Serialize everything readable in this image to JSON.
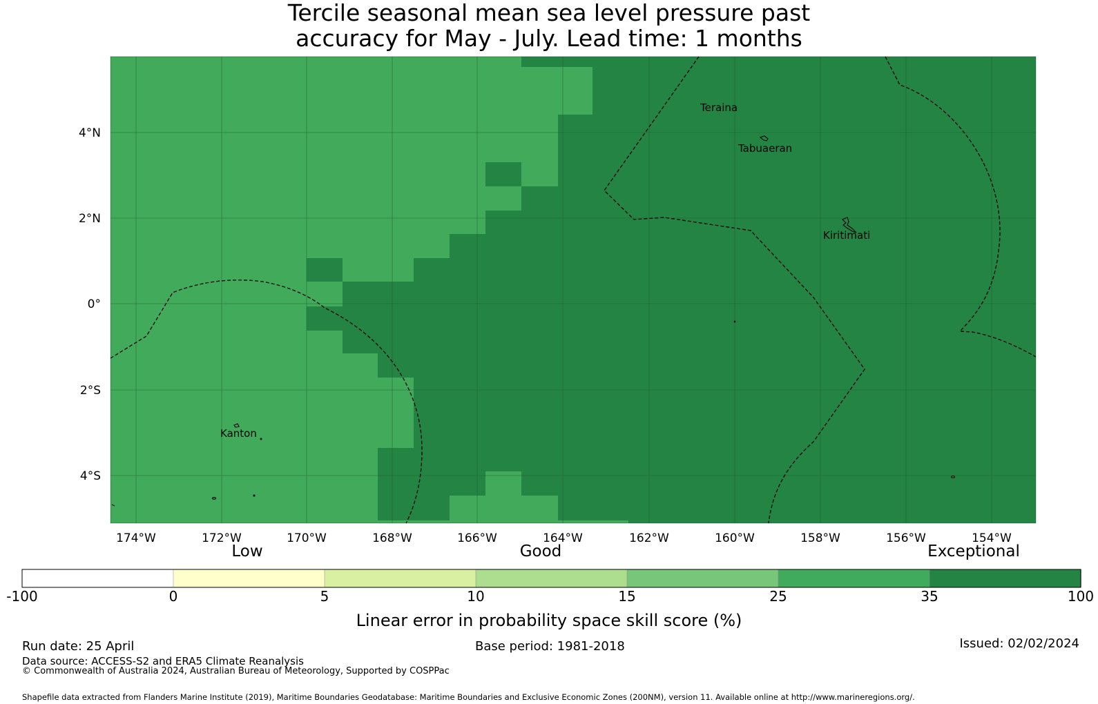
{
  "title": {
    "line1": "Tercile seasonal mean sea level pressure past",
    "line2": "accuracy for May - July. Lead time: 1 months"
  },
  "map": {
    "lon_labels": [
      "174°W",
      "172°W",
      "170°W",
      "168°W",
      "166°W",
      "164°W",
      "162°W",
      "160°W",
      "158°W",
      "156°W",
      "154°W"
    ],
    "lat_labels": [
      "4°N",
      "2°N",
      "0°",
      "2°S",
      "4°S"
    ],
    "places": [
      {
        "name": "Teraina"
      },
      {
        "name": "Tabuaeran"
      },
      {
        "name": "Kiritimati"
      },
      {
        "name": "Kanton"
      }
    ],
    "colors": {
      "good_25_35": "#41aa5b",
      "exceptional_35_100": "#238443",
      "grid": "#1f5f30",
      "boundary": "#000000"
    }
  },
  "colorbar": {
    "categories": [
      "Low",
      "Good",
      "Exceptional"
    ],
    "ticks": [
      "-100",
      "0",
      "5",
      "10",
      "15",
      "25",
      "35",
      "100"
    ],
    "colors": [
      "#ffffff",
      "#ffffcc",
      "#d9f0a3",
      "#addd8e",
      "#78c679",
      "#41ab5d",
      "#238443"
    ],
    "label": "Linear error in probability space skill score (%)"
  },
  "footer": {
    "run_date": "Run date: 25 April",
    "base_period": "Base period: 1981-2018",
    "issued": "Issued: 02/02/2024",
    "data_source": "Data source: ACCESS-S2 and ERA5 Climate Reanalysis",
    "copyright": "© Commonwealth of Australia 2024, Australian Bureau of Meteorology, Supported by COSPPac",
    "shapefile": "Shapefile data extracted from Flanders Marine Institute (2019), Maritime Boundaries Geodatabase: Maritime Boundaries and Exclusive Economic Zones (200NM), version 11. Available online at http://www.marineregions.org/."
  }
}
